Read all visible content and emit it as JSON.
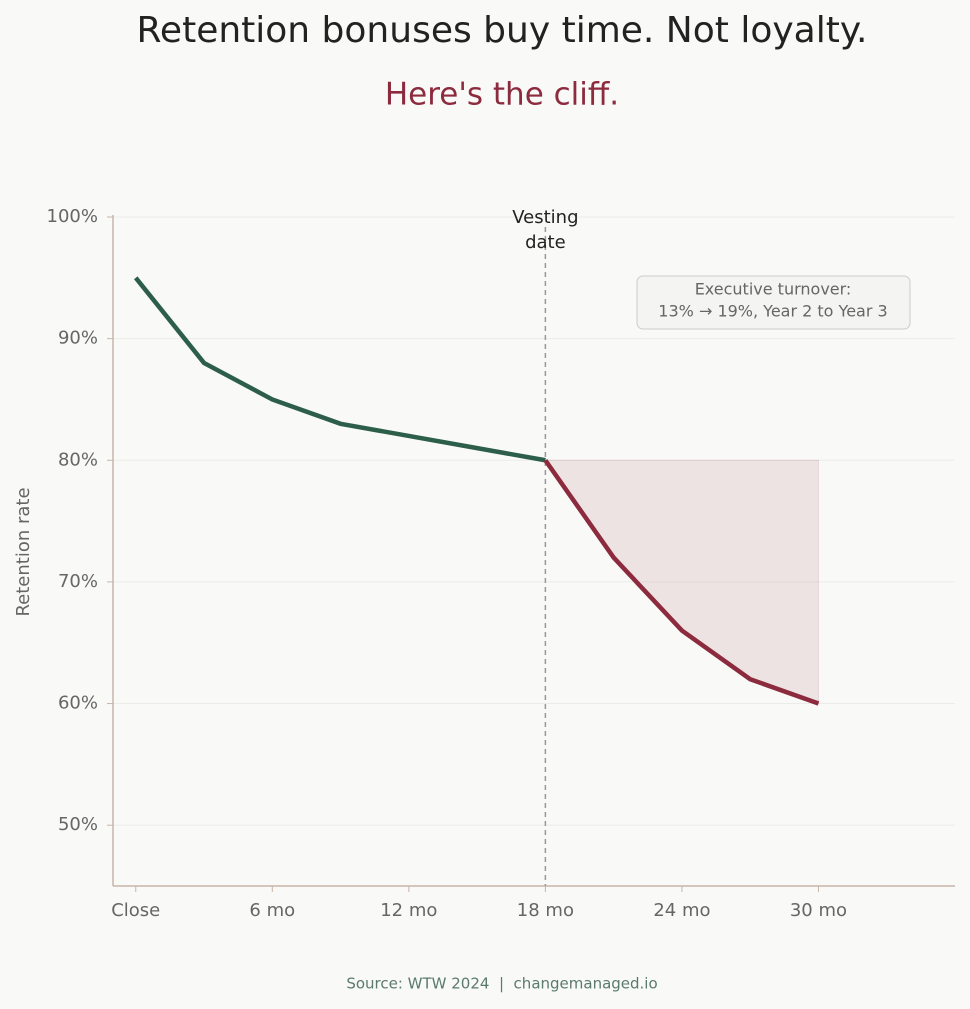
{
  "chart_data": {
    "type": "line",
    "title": "Retention bonuses buy time. Not loyalty.",
    "subtitle": "Here's the cliff.",
    "y_label": "Retention rate",
    "source": "Source: WTW 2024  |  changemanaged.io",
    "series": [
      {
        "color": "#2d5e4a",
        "x": [
          0,
          3,
          6,
          9,
          12,
          15,
          18
        ],
        "values": [
          95,
          88,
          85,
          83,
          82,
          81,
          80
        ]
      },
      {
        "color": "#8c2a3e",
        "x": [
          18,
          21,
          24,
          27,
          30
        ],
        "values": [
          80,
          72,
          66,
          62,
          60
        ],
        "shaded": true
      }
    ],
    "xlim": [
      -1,
      36
    ],
    "ylim": [
      45,
      100
    ],
    "xticks": [
      {
        "value": 0,
        "label": "Close"
      },
      {
        "value": 6,
        "label": "6 mo"
      },
      {
        "value": 12,
        "label": "12 mo"
      },
      {
        "value": 18,
        "label": "18 mo"
      },
      {
        "value": 24,
        "label": "24 mo"
      },
      {
        "value": 30,
        "label": "30 mo"
      }
    ],
    "yticks": [
      {
        "value": 50,
        "label": "50%"
      },
      {
        "value": 60,
        "label": "60%"
      },
      {
        "value": 70,
        "label": "70%"
      },
      {
        "value": 80,
        "label": "80%"
      },
      {
        "value": 90,
        "label": "90%"
      },
      {
        "value": 100,
        "label": "100%"
      }
    ],
    "grid": true,
    "vline": {
      "x": 18,
      "label": [
        "Vesting",
        "date"
      ]
    },
    "annotation": [
      "Executive turnover:",
      "13% → 19%, Year 2 to Year 3"
    ]
  }
}
